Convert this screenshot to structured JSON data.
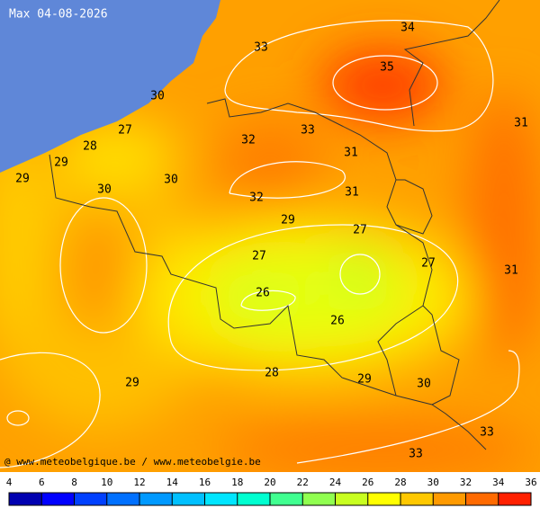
{
  "header": {
    "title": "Max 04-08-2026"
  },
  "footer": {
    "credit": "@ www.meteobelgique.be / www.meteobelgie.be"
  },
  "temperature_labels": [
    33,
    34,
    35,
    30,
    27,
    28,
    29,
    29,
    30,
    30,
    32,
    33,
    31,
    31,
    32,
    29,
    27,
    27,
    27,
    26,
    26,
    31,
    31,
    28,
    29,
    29,
    30,
    33,
    33
  ],
  "colorbar": {
    "ticks": [
      4,
      6,
      8,
      10,
      12,
      14,
      16,
      18,
      20,
      22,
      24,
      26,
      28,
      30,
      32,
      34,
      36
    ]
  }
}
